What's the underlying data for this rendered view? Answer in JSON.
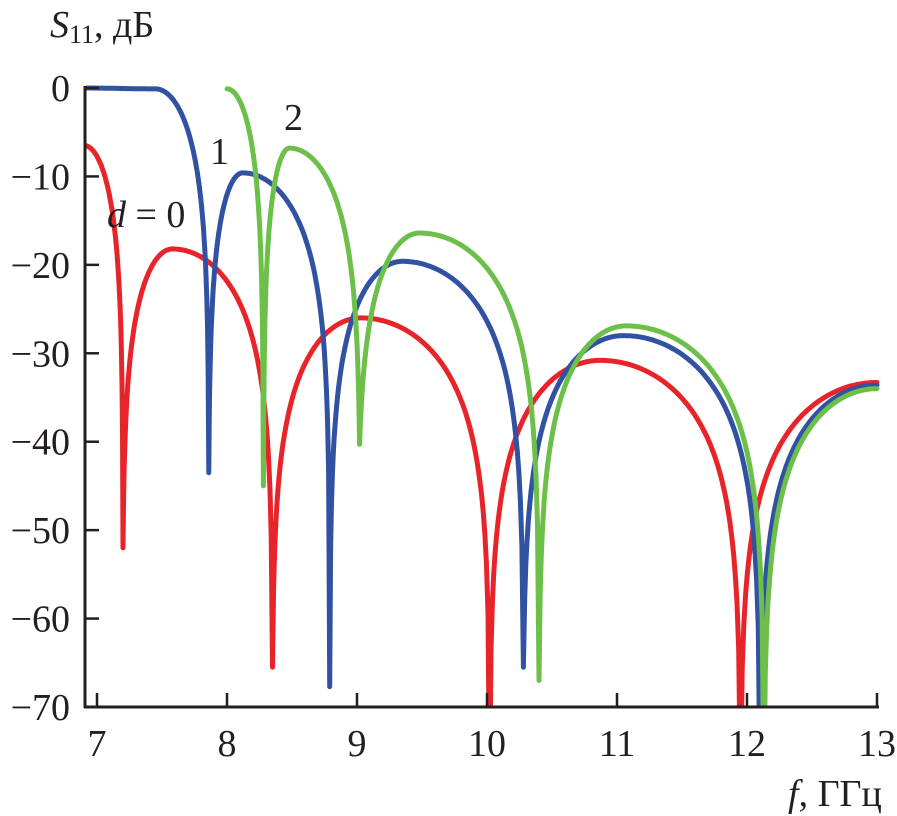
{
  "chart_data": {
    "type": "line",
    "title": "",
    "ylabel": {
      "main": "S",
      "sub": "11",
      "unit": ", дБ"
    },
    "xlabel": {
      "main": "f",
      "unit": ", ГГц"
    },
    "xlim": [
      6.9,
      13
    ],
    "ylim": [
      -70,
      0
    ],
    "xticks": [
      7,
      8,
      9,
      10,
      11,
      12,
      13
    ],
    "xtick_labels": [
      "7",
      "8",
      "9",
      "10",
      "11",
      "12",
      "13"
    ],
    "yticks": [
      0,
      -10,
      -20,
      -30,
      -40,
      -50,
      -60,
      -70
    ],
    "ytick_labels": [
      "0",
      "−10",
      "−20",
      "−30",
      "−40",
      "−50",
      "−60",
      "−70"
    ],
    "grid": false,
    "colors": {
      "red": "#e8242b",
      "blue": "#3152a3",
      "green": "#6cc04a",
      "axis": "#231f20"
    },
    "series": [
      {
        "name": "d = 0",
        "label_main": "d",
        "label_rest": " = 0",
        "color": "#e8242b",
        "keypoints": [
          [
            6.9,
            -6.5,
            "s"
          ],
          [
            7.2,
            -52,
            "d"
          ],
          [
            7.58,
            -18.2,
            "p"
          ],
          [
            8.35,
            -65.5,
            "d"
          ],
          [
            9.03,
            -26,
            "p"
          ],
          [
            10.02,
            -80,
            "d"
          ],
          [
            10.87,
            -30.8,
            "p"
          ],
          [
            11.95,
            -80,
            "d"
          ],
          [
            13.0,
            -33.3,
            "e"
          ]
        ]
      },
      {
        "name": "1",
        "label_main": "1",
        "label_rest": "",
        "color": "#3152a3",
        "keypoints": [
          [
            6.9,
            0,
            "s"
          ],
          [
            7.45,
            -0.1,
            "p"
          ],
          [
            7.86,
            -43.5,
            "d"
          ],
          [
            8.12,
            -9.6,
            "p"
          ],
          [
            8.79,
            -67.7,
            "d"
          ],
          [
            9.35,
            -19.6,
            "p"
          ],
          [
            10.28,
            -65.5,
            "d"
          ],
          [
            11.05,
            -28,
            "p"
          ],
          [
            12.1,
            -80,
            "d"
          ],
          [
            13.0,
            -33.6,
            "e"
          ]
        ]
      },
      {
        "name": "2",
        "label_main": "2",
        "label_rest": "",
        "color": "#6cc04a",
        "keypoints": [
          [
            8.0,
            -0.1,
            "p"
          ],
          [
            8.28,
            -45,
            "d"
          ],
          [
            8.48,
            -6.8,
            "p"
          ],
          [
            9.02,
            -40.3,
            "d"
          ],
          [
            9.48,
            -16.4,
            "p"
          ],
          [
            10.4,
            -67,
            "d"
          ],
          [
            11.07,
            -26.9,
            "p"
          ],
          [
            12.13,
            -80,
            "d"
          ],
          [
            13.0,
            -34,
            "e"
          ]
        ]
      }
    ]
  }
}
